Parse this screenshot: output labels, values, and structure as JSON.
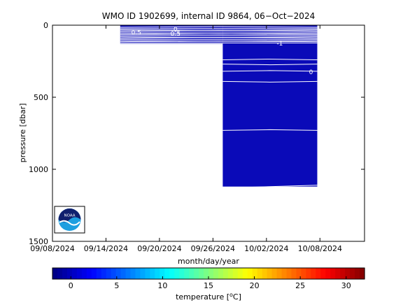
{
  "chart_data": {
    "type": "heatmap",
    "title": "WMO ID 1902699, internal ID 9864, 06−Oct−2024",
    "xlabel": "month/day/year",
    "ylabel": "pressure [dbar]",
    "colorbar_label": "temperature [",
    "colorbar_label_unit": "C]",
    "colorbar_label_degree": "o",
    "x_ticks": [
      "09/08/2024",
      "09/14/2024",
      "09/20/2024",
      "09/26/2024",
      "10/02/2024",
      "10/08/2024"
    ],
    "xlim_days": [
      0,
      35
    ],
    "y_ticks": [
      0,
      500,
      1000,
      1500
    ],
    "ylim": [
      0,
      1500
    ],
    "colorbar_ticks": [
      0,
      5,
      10,
      15,
      20,
      25,
      30
    ],
    "colorbar_range": [
      -2,
      32
    ],
    "fill_color": "#0a0ab8",
    "segments": [
      {
        "x_start_day": 7.6,
        "x_end_day": 19.1,
        "p_top": 0,
        "p_bottom": 128
      },
      {
        "x_start_day": 19.1,
        "x_end_day": 29.7,
        "p_top": 0,
        "p_bottom": 1120
      }
    ],
    "contour_labels": [
      {
        "text": "0.5",
        "x_day": 9.4,
        "p": 50
      },
      {
        "text": "0",
        "x_day": 13.8,
        "p": 28
      },
      {
        "text": "0.5",
        "x_day": 13.8,
        "p": 58
      },
      {
        "text": "-1",
        "x_day": 25.5,
        "p": 125
      },
      {
        "text": "0",
        "x_day": 29.0,
        "p": 325
      }
    ],
    "logo_text": "NOAA"
  }
}
